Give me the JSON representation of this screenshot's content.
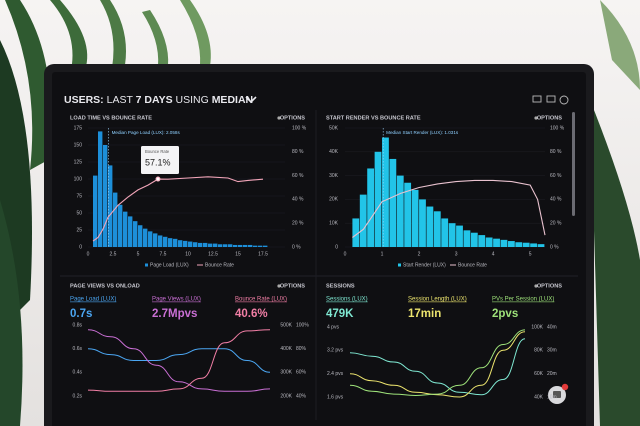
{
  "header": {
    "title_parts": [
      "USERS:",
      "LAST",
      "7 DAYS",
      "USING",
      "MEDIAN"
    ]
  },
  "panels": [
    {
      "title": "LOAD TIME VS BOUNCE RATE",
      "options": "OPTIONS",
      "chart": {
        "type": "histogram",
        "name": "Page Load (LUX)",
        "color": "#1d8fd9",
        "bins": [
          0.5,
          1,
          1.5,
          2,
          2.5,
          3,
          3.5,
          4,
          4.5,
          5,
          5.5,
          6,
          6.5,
          7,
          7.5,
          8,
          8.5,
          9,
          9.5,
          10,
          10.5,
          11,
          11.5,
          12,
          12.5,
          13,
          13.5,
          14,
          14.5,
          15,
          15.5,
          16,
          16.5,
          17,
          17.5,
          18
        ],
        "values": [
          105,
          170,
          150,
          120,
          80,
          62,
          52,
          45,
          38,
          32,
          27,
          23,
          20,
          17,
          15,
          13,
          12,
          10,
          9,
          8,
          7,
          6,
          6,
          5,
          5,
          4,
          4,
          4,
          3,
          3,
          3,
          3,
          2,
          2,
          2
        ],
        "xlim": [
          0,
          19.7
        ],
        "xticks": [
          0,
          2.5,
          5,
          7.5,
          10,
          12.5,
          15,
          17.5
        ],
        "ylim": [
          0,
          175
        ],
        "yticks": [
          0,
          25,
          50,
          75,
          100,
          125,
          150,
          175
        ],
        "y2lim": [
          0,
          100
        ],
        "y2ticks": [
          {
            "value": 0,
            "label": "0 %"
          },
          {
            "value": 20,
            "label": "20 %"
          },
          {
            "value": 40,
            "label": "40 %"
          },
          {
            "value": 60,
            "label": "60 %"
          },
          {
            "value": 80,
            "label": "80 %"
          },
          {
            "value": 100,
            "label": "100 %"
          }
        ],
        "median": {
          "value": 2.058,
          "label": "Median Page Load (LUX): 2.058s"
        },
        "line": {
          "name": "Bounce Rate",
          "color": "#f2a5b9",
          "axis": "y2",
          "x": [
            0.5,
            1,
            1.5,
            2,
            3,
            4,
            5,
            6,
            7,
            8,
            10,
            12,
            14,
            15,
            16,
            17.5
          ],
          "values": [
            5,
            8,
            15,
            25,
            35,
            42,
            48,
            52,
            57.1,
            57,
            58,
            59,
            58,
            55,
            56,
            57
          ]
        },
        "tooltip": {
          "title": "Bounce Rate",
          "label": "57.1%"
        }
      }
    },
    {
      "title": "START RENDER VS BOUNCE RATE",
      "options": "OPTIONS",
      "chart": {
        "type": "histogram",
        "name": "Start Render (LUX)",
        "color": "#22c4e8",
        "bins": [
          0.2,
          0.4,
          0.6,
          0.8,
          1,
          1.2,
          1.4,
          1.6,
          1.8,
          2,
          2.2,
          2.4,
          2.6,
          2.8,
          3,
          3.2,
          3.4,
          3.6,
          3.8,
          4,
          4.2,
          4.4,
          4.6,
          4.8,
          5,
          5.2,
          5.4
        ],
        "values": [
          12000,
          22000,
          33000,
          40000,
          46000,
          37000,
          30000,
          27000,
          24000,
          20000,
          17000,
          15000,
          12000,
          10000,
          9000,
          7000,
          6000,
          5000,
          4000,
          3500,
          3000,
          2500,
          2000,
          1800,
          1500,
          1200
        ],
        "xlim": [
          0,
          5.4
        ],
        "xticks": [
          0,
          1,
          2,
          3,
          4,
          5
        ],
        "ylim": [
          0,
          50000
        ],
        "yticks": [
          {
            "value": 0,
            "label": "0"
          },
          {
            "value": 10000,
            "label": "10K"
          },
          {
            "value": 20000,
            "label": "20K"
          },
          {
            "value": 30000,
            "label": "30K"
          },
          {
            "value": 40000,
            "label": "40K"
          },
          {
            "value": 50000,
            "label": "50K"
          }
        ],
        "y2lim": [
          0,
          100
        ],
        "y2ticks": [
          {
            "value": 0,
            "label": "0 %"
          },
          {
            "value": 20,
            "label": "20 %"
          },
          {
            "value": 40,
            "label": "40 %"
          },
          {
            "value": 60,
            "label": "60 %"
          },
          {
            "value": 80,
            "label": "80 %"
          },
          {
            "value": 100,
            "label": "100 %"
          }
        ],
        "median": {
          "value": 1.031,
          "label": "Median Start Render (LUX): 1.031s"
        },
        "line": {
          "name": "Bounce Rate",
          "color": "#e9c2cf",
          "axis": "y2",
          "x": [
            0.2,
            0.5,
            1,
            1.5,
            2,
            2.5,
            3,
            3.5,
            4,
            4.5,
            5,
            5.2,
            5.4
          ],
          "values": [
            8,
            15,
            38,
            45,
            50,
            53,
            55,
            56,
            56,
            55,
            52,
            40,
            10
          ]
        }
      }
    },
    {
      "title": "PAGE VIEWS VS ONLOAD",
      "options": "OPTIONS",
      "metrics": [
        {
          "label": "Page Load (LUX)",
          "value": "0.7s",
          "color": "#4ba6f2"
        },
        {
          "label": "Page Views (LUX)",
          "value": "2.7Mpvs",
          "color": "#c96fd4"
        },
        {
          "label": "Bounce Rate (LUX)",
          "value": "40.6%",
          "color": "#f27fa6"
        }
      ],
      "chart": {
        "type": "line",
        "ylim": [
          0.2,
          0.8
        ],
        "yticks": [
          {
            "value": 0.2,
            "label": "0.2s"
          },
          {
            "value": 0.4,
            "label": "0.4s"
          },
          {
            "value": 0.6,
            "label": "0.6s"
          },
          {
            "value": 0.8,
            "label": "0.8s"
          }
        ],
        "y2lim": [
          200000,
          500000
        ],
        "y2ticks": [
          {
            "value": 200000,
            "label": "200K"
          },
          {
            "value": 300000,
            "label": "300K"
          },
          {
            "value": 400000,
            "label": "400K"
          },
          {
            "value": 500000,
            "label": "500K"
          }
        ],
        "y3lim": [
          40,
          100
        ],
        "y3ticks": [
          {
            "value": 40,
            "label": "40%"
          },
          {
            "value": 60,
            "label": "60%"
          },
          {
            "value": 80,
            "label": "80%"
          },
          {
            "value": 100,
            "label": "100%"
          }
        ],
        "series": [
          {
            "color": "#4ba6f2",
            "axis": "y",
            "values": [
              0.6,
              0.55,
              0.5,
              0.5,
              0.55,
              0.6,
              0.6,
              0.5,
              0.4
            ]
          },
          {
            "color": "#c96fd4",
            "axis": "y2",
            "values": [
              480000,
              450000,
              400000,
              330000,
              260000,
              230000,
              220000,
              220000,
              230000
            ]
          },
          {
            "color": "#f27fa6",
            "axis": "y3",
            "values": [
              45,
              44,
              44,
              44,
              46,
              55,
              85,
              95,
              96
            ]
          }
        ]
      }
    },
    {
      "title": "SESSIONS",
      "options": "OPTIONS",
      "metrics": [
        {
          "label": "Sessions (LUX)",
          "value": "479K",
          "color": "#7fe8d2"
        },
        {
          "label": "Session Length (LUX)",
          "value": "17min",
          "color": "#ece46e"
        },
        {
          "label": "PVs Per Session (LUX)",
          "value": "2pvs",
          "color": "#9ee27a"
        }
      ],
      "chart": {
        "type": "line",
        "ylim": [
          1.6,
          4
        ],
        "yticks": [
          {
            "value": 1.6,
            "label": "1.6 pvs"
          },
          {
            "value": 2.4,
            "label": "2.4 pvs"
          },
          {
            "value": 3.2,
            "label": "3.2 pvs"
          },
          {
            "value": 4,
            "label": "4 pvs"
          }
        ],
        "y2lim": [
          40000,
          100000
        ],
        "y2ticks": [
          {
            "value": 40000,
            "label": "40K"
          },
          {
            "value": 60000,
            "label": "60K"
          },
          {
            "value": 80000,
            "label": "80K"
          },
          {
            "value": 100000,
            "label": "100K"
          }
        ],
        "y3lim": [
          10,
          40
        ],
        "y3ticks": [
          {
            "value": 10,
            "label": "10m"
          },
          {
            "value": 20,
            "label": "20m"
          },
          {
            "value": 30,
            "label": "30m"
          },
          {
            "value": 40,
            "label": "40m"
          }
        ],
        "series": [
          {
            "color": "#7fe8d2",
            "axis": "y2",
            "values": [
              78000,
              75000,
              70000,
              62000,
              52000,
              44000,
              42000,
              55000,
              90000
            ]
          },
          {
            "color": "#ece46e",
            "axis": "y3",
            "values": [
              20,
              17,
              15,
              12,
              11,
              10,
              15,
              30,
              38
            ]
          },
          {
            "color": "#9ee27a",
            "axis": "y",
            "values": [
              2.0,
              1.8,
              1.7,
              1.65,
              1.7,
              2.0,
              2.6,
              3.4,
              3.9
            ]
          }
        ]
      }
    }
  ]
}
